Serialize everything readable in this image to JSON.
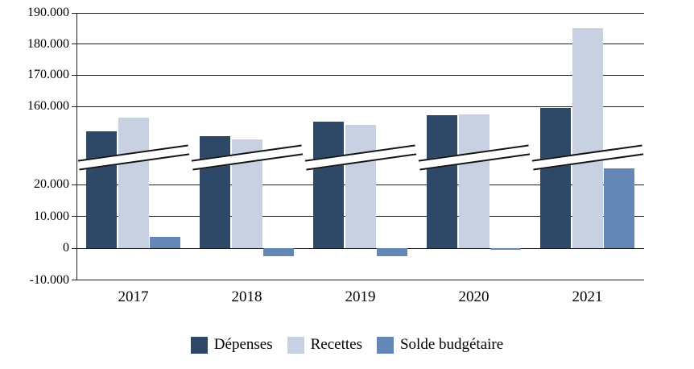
{
  "chart_data": {
    "type": "bar",
    "title": "",
    "categories": [
      "2017",
      "2018",
      "2019",
      "2020",
      "2021"
    ],
    "series": [
      {
        "name": "Dépenses",
        "color": "#2E4868",
        "values": [
          152000,
          150500,
          155000,
          157200,
          159500
        ]
      },
      {
        "name": "Recettes",
        "color": "#C7D1E2",
        "values": [
          156500,
          149500,
          154000,
          157500,
          185000
        ]
      },
      {
        "name": "Solde budgétaire",
        "color": "#6487B5",
        "values": [
          3500,
          -2500,
          -2500,
          -500,
          25000
        ]
      }
    ],
    "y_axis": {
      "ticks": [
        190000,
        180000,
        170000,
        160000,
        20000,
        10000,
        0,
        -10000
      ],
      "tick_labels": [
        "190.000",
        "180.000",
        "170.000",
        "160.000",
        "20.000",
        "10.000",
        "0",
        "-10.000"
      ],
      "axis_break": true,
      "break_between_values": [
        25000,
        149000
      ]
    },
    "grid": true,
    "legend_position": "bottom",
    "xlabel": "",
    "ylabel": ""
  },
  "colors": {
    "background": "#ffffff",
    "gridline": "#1f1f1f",
    "text": "#000000"
  }
}
